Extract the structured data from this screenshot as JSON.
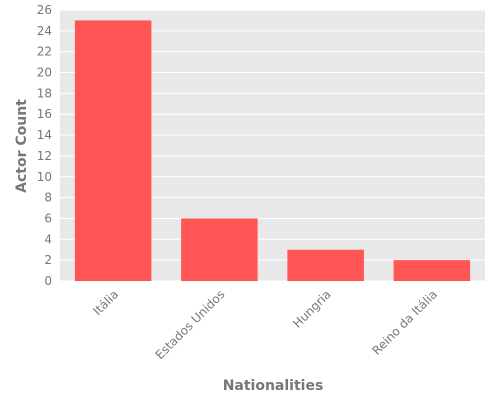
{
  "chart_data": {
    "type": "bar",
    "categories": [
      "Itália",
      "Estados Unidos",
      "Hungria",
      "Reino da Itália"
    ],
    "values": [
      25,
      6,
      3,
      2
    ],
    "title": "",
    "xlabel": "Nationalities",
    "ylabel": "Actor Count",
    "ylim": [
      0,
      26
    ],
    "yticks": [
      0,
      2,
      4,
      6,
      8,
      10,
      12,
      14,
      16,
      18,
      20,
      22,
      24,
      26
    ],
    "grid": true,
    "legend": "none",
    "colors": {
      "bar": "#ff5555",
      "plot_background": "#e8e8e8",
      "grid": "#ffffff",
      "text": "#777777"
    }
  }
}
